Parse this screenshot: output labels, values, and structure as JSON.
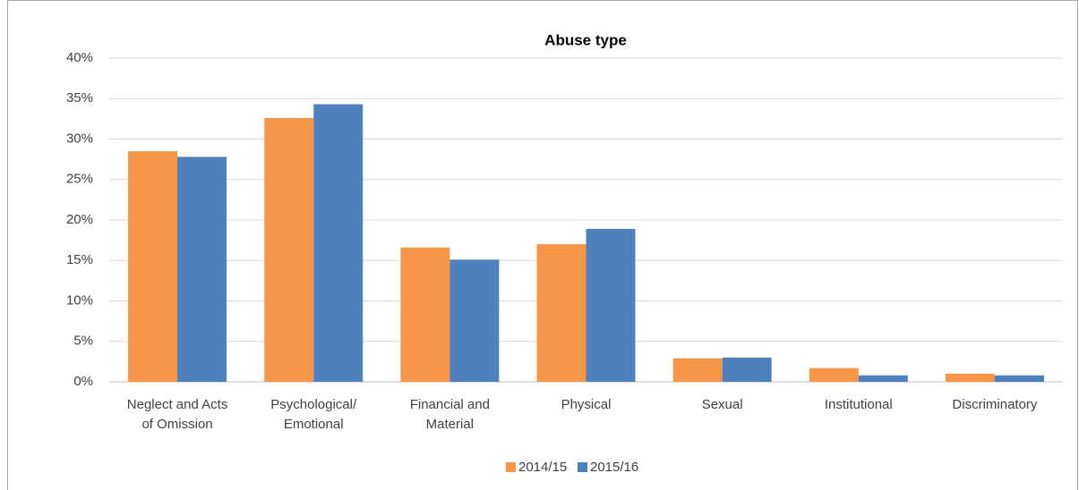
{
  "chart_data": {
    "type": "bar",
    "title": "Abuse type",
    "categories": [
      "Neglect and Acts\nof Omission",
      "Psychological/\nEmotional",
      "Financial and\nMaterial",
      "Physical",
      "Sexual",
      "Institutional",
      "Discriminatory"
    ],
    "series": [
      {
        "name": "2014/15",
        "color": "#f79646",
        "values": [
          28.5,
          32.6,
          16.6,
          17.0,
          2.9,
          1.7,
          1.0
        ]
      },
      {
        "name": "2015/16",
        "color": "#4f81bd",
        "values": [
          27.8,
          34.3,
          15.1,
          18.9,
          3.0,
          0.8,
          0.8
        ]
      }
    ],
    "ylim": [
      0,
      40
    ],
    "yticks": [
      {
        "value": 0,
        "label": "0%"
      },
      {
        "value": 5,
        "label": "5%"
      },
      {
        "value": 10,
        "label": "10%"
      },
      {
        "value": 15,
        "label": "15%"
      },
      {
        "value": 20,
        "label": "20%"
      },
      {
        "value": 25,
        "label": "25%"
      },
      {
        "value": 30,
        "label": "30%"
      },
      {
        "value": 35,
        "label": "35%"
      },
      {
        "value": 40,
        "label": "40%"
      }
    ],
    "grid": true,
    "legend": "bottom"
  }
}
